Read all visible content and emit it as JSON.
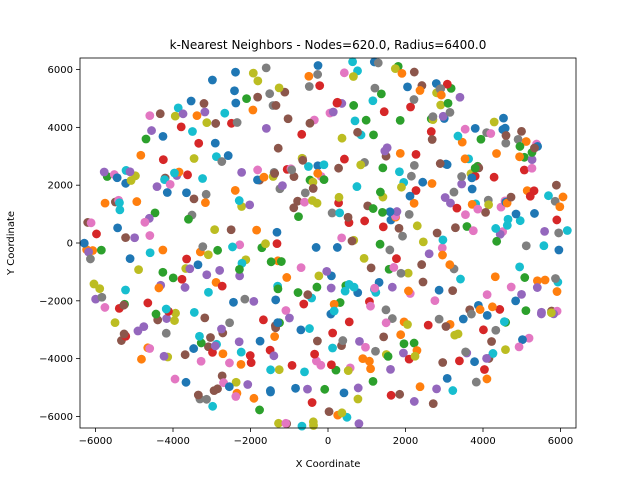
{
  "chart_data": {
    "type": "scatter",
    "title": "k-Nearest Neighbors - Nodes=620.0, Radius=6400.0",
    "xlabel": "X Coordinate",
    "ylabel": "Y Coordinate",
    "xlim": [
      -6400,
      6400
    ],
    "ylim": [
      -6400,
      6400
    ],
    "xticks": [
      -6000,
      -4000,
      -2000,
      0,
      2000,
      4000,
      6000
    ],
    "yticks": [
      -6000,
      -4000,
      -2000,
      0,
      2000,
      4000,
      6000
    ],
    "xtick_labels": [
      "−6000",
      "−4000",
      "−2000",
      "0",
      "2000",
      "4000",
      "6000"
    ],
    "ytick_labels": [
      "−6000",
      "−4000",
      "−2000",
      "0",
      "2000",
      "4000",
      "6000"
    ],
    "grid": false,
    "legend": "none",
    "palette": [
      "#1f77b4",
      "#ff7f0e",
      "#2ca02c",
      "#d62728",
      "#9467bd",
      "#8c564b",
      "#e377c2",
      "#7f7f7f",
      "#bcbd22",
      "#17becf"
    ],
    "points_count": 620,
    "points_radius": 6400,
    "points_seed": 20240611
  }
}
